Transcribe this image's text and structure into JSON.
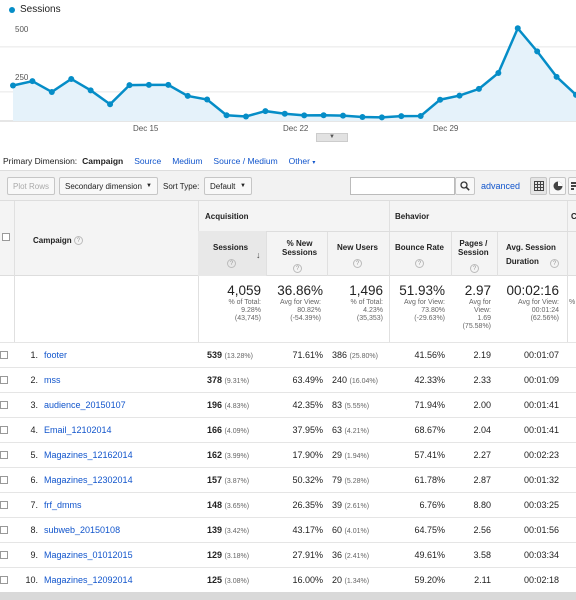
{
  "chart_data": {
    "type": "area",
    "series": [
      {
        "name": "Sessions",
        "values": [
          197,
          221,
          161,
          233,
          170,
          93,
          199,
          200,
          200,
          139,
          119,
          32,
          25,
          55,
          40,
          31,
          32,
          30,
          22,
          20,
          27,
          28,
          118,
          141,
          178,
          266,
          514,
          386,
          245,
          145
        ]
      }
    ],
    "x_ticks": [
      "Dec 15",
      "Dec 22",
      "Dec 29"
    ],
    "y_ticks": [
      "500",
      "250"
    ],
    "ylim": [
      0,
      560
    ],
    "color": "#058dc7"
  },
  "legend": {
    "label": "Sessions"
  },
  "primary_dimension": {
    "label": "Primary Dimension:",
    "active": "Campaign",
    "options": [
      "Source",
      "Medium",
      "Source / Medium",
      "Other"
    ]
  },
  "toolbar": {
    "plot_rows": "Plot Rows",
    "secondary_dimension": "Secondary dimension",
    "sort_type_label": "Sort Type:",
    "sort_type_value": "Default",
    "search_value": "",
    "advanced": "advanced"
  },
  "table": {
    "campaign_header": "Campaign",
    "groups": {
      "acquisition": "Acquisition",
      "behavior": "Behavior",
      "conversions": "C"
    },
    "columns": {
      "sessions": "Sessions",
      "new_sessions_1": "% New",
      "new_sessions_2": "Sessions",
      "new_users": "New Users",
      "bounce_rate": "Bounce Rate",
      "pages_1": "Pages /",
      "pages_2": "Session",
      "duration_1": "Avg. Session",
      "duration_2": "Duration"
    },
    "totals": {
      "sessions": {
        "value": "4,059",
        "l1": "% of Total:",
        "l2": "9.28%",
        "l3": "(43,745)"
      },
      "new_sessions": {
        "value": "36.86%",
        "l1": "Avg for View:",
        "l2": "80.82%",
        "l3": "(-54.39%)"
      },
      "new_users": {
        "value": "1,496",
        "l1": "% of Total:",
        "l2": "4.23%",
        "l3": "(35,353)"
      },
      "bounce_rate": {
        "value": "51.93%",
        "l1": "Avg for View:",
        "l2": "73.80%",
        "l3": "(-29.63%)"
      },
      "pages": {
        "value": "2.97",
        "l1": "Avg for",
        "l2": "View:",
        "l3": "1.69",
        "l4": "(75.58%)"
      },
      "duration": {
        "value": "00:02:16",
        "l1": "Avg for View:",
        "l2": "00:01:24",
        "l3": "(62.56%)"
      }
    },
    "rows": [
      {
        "n": "1.",
        "campaign": "footer",
        "sessions": "539",
        "sessions_pct": "(13.28%)",
        "new_sessions": "71.61%",
        "new_users": "386",
        "new_users_pct": "(25.80%)",
        "bounce": "41.56%",
        "pages": "2.19",
        "duration": "00:01:07"
      },
      {
        "n": "2.",
        "campaign": "mss",
        "sessions": "378",
        "sessions_pct": "(9.31%)",
        "new_sessions": "63.49%",
        "new_users": "240",
        "new_users_pct": "(16.04%)",
        "bounce": "42.33%",
        "pages": "2.33",
        "duration": "00:01:09"
      },
      {
        "n": "3.",
        "campaign": "audience_20150107",
        "sessions": "196",
        "sessions_pct": "(4.83%)",
        "new_sessions": "42.35%",
        "new_users": "83",
        "new_users_pct": "(5.55%)",
        "bounce": "71.94%",
        "pages": "2.00",
        "duration": "00:01:41"
      },
      {
        "n": "4.",
        "campaign": "Email_12102014",
        "sessions": "166",
        "sessions_pct": "(4.09%)",
        "new_sessions": "37.95%",
        "new_users": "63",
        "new_users_pct": "(4.21%)",
        "bounce": "68.67%",
        "pages": "2.04",
        "duration": "00:01:41"
      },
      {
        "n": "5.",
        "campaign": "Magazines_12162014",
        "sessions": "162",
        "sessions_pct": "(3.99%)",
        "new_sessions": "17.90%",
        "new_users": "29",
        "new_users_pct": "(1.94%)",
        "bounce": "57.41%",
        "pages": "2.27",
        "duration": "00:02:23"
      },
      {
        "n": "6.",
        "campaign": "Magazines_12302014",
        "sessions": "157",
        "sessions_pct": "(3.87%)",
        "new_sessions": "50.32%",
        "new_users": "79",
        "new_users_pct": "(5.28%)",
        "bounce": "61.78%",
        "pages": "2.87",
        "duration": "00:01:32"
      },
      {
        "n": "7.",
        "campaign": "frf_dmms",
        "sessions": "148",
        "sessions_pct": "(3.65%)",
        "new_sessions": "26.35%",
        "new_users": "39",
        "new_users_pct": "(2.61%)",
        "bounce": "6.76%",
        "pages": "8.80",
        "duration": "00:03:25"
      },
      {
        "n": "8.",
        "campaign": "subweb_20150108",
        "sessions": "139",
        "sessions_pct": "(3.42%)",
        "new_sessions": "43.17%",
        "new_users": "60",
        "new_users_pct": "(4.01%)",
        "bounce": "64.75%",
        "pages": "2.56",
        "duration": "00:01:56"
      },
      {
        "n": "9.",
        "campaign": "Magazines_01012015",
        "sessions": "129",
        "sessions_pct": "(3.18%)",
        "new_sessions": "27.91%",
        "new_users": "36",
        "new_users_pct": "(2.41%)",
        "bounce": "49.61%",
        "pages": "3.58",
        "duration": "00:03:34"
      },
      {
        "n": "10.",
        "campaign": "Magazines_12092014",
        "sessions": "125",
        "sessions_pct": "(3.08%)",
        "new_sessions": "16.00%",
        "new_users": "20",
        "new_users_pct": "(1.34%)",
        "bounce": "59.20%",
        "pages": "2.11",
        "duration": "00:02:18"
      }
    ]
  }
}
